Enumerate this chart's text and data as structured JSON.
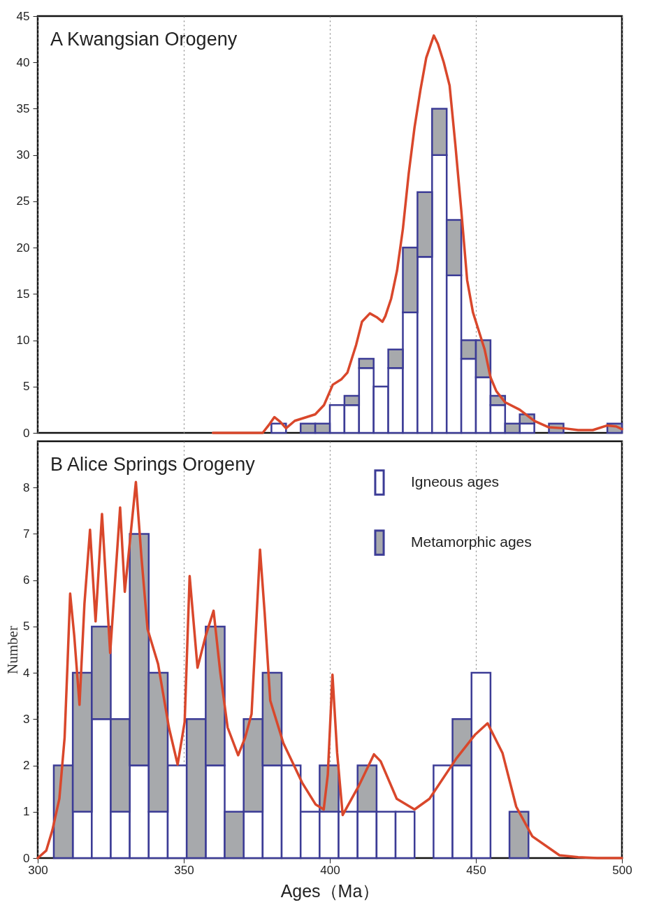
{
  "chart_data": [
    {
      "type": "bar",
      "title": "A Kwangsian Orogeny",
      "stacked": true,
      "grid": "x",
      "tick_labels": "y",
      "legend": false,
      "x": [
        382.5,
        387.5,
        392.5,
        397.5,
        402.5,
        407.5,
        412.5,
        417.5,
        422.5,
        427.5,
        432.5,
        437.5,
        442.5,
        447.5,
        452.5,
        457.5,
        462.5,
        467.5,
        472.5,
        477.5,
        482.5,
        487.5,
        492.5,
        497.5
      ],
      "series": [
        {
          "color": "#ffffff",
          "values": [
            1,
            0,
            0,
            0,
            3,
            3,
            7,
            5,
            7,
            13,
            19,
            30,
            17,
            8,
            6,
            3,
            0,
            1,
            0,
            0,
            0,
            0,
            0,
            0
          ]
        },
        {
          "color": "#a7a9ac",
          "values": [
            0,
            0,
            1,
            1,
            0,
            1,
            1,
            0,
            2,
            7,
            7,
            5,
            6,
            2,
            4,
            1,
            1,
            1,
            0,
            1,
            0,
            0,
            0,
            1
          ]
        },
        {
          "type": "line",
          "color": "#d9472b",
          "x": [
            360,
            377,
            379,
            381,
            383,
            385,
            388,
            392,
            395,
            398,
            401,
            404,
            406,
            409,
            411,
            413.7,
            416,
            418,
            419,
            421,
            423,
            425,
            427,
            429,
            431,
            433,
            435.6,
            437,
            439,
            441,
            443,
            445,
            447,
            449,
            451,
            453,
            455,
            457,
            460,
            465,
            470,
            475,
            480,
            485,
            490,
            495,
            498,
            500
          ],
          "values": [
            0,
            0,
            0.8,
            1.7,
            1.2,
            0.5,
            1.3,
            1.7,
            2.0,
            3.0,
            5.2,
            5.8,
            6.5,
            9.5,
            12.0,
            12.9,
            12.5,
            12.0,
            12.6,
            14.5,
            17.5,
            22,
            28,
            33,
            37,
            40.5,
            42.9,
            42,
            40,
            37.5,
            31,
            24,
            16.5,
            13,
            11,
            9,
            6,
            4.5,
            3.3,
            2.5,
            1.3,
            0.6,
            0.5,
            0.3,
            0.3,
            0.8,
            0.7,
            0.4
          ]
        }
      ],
      "xlim": [
        300,
        500
      ],
      "xticks": [
        300,
        350,
        400,
        450,
        500
      ],
      "ylim": [
        0,
        45
      ],
      "yticks": [
        0,
        5,
        10,
        15,
        20,
        25,
        30,
        35,
        40,
        45
      ]
    },
    {
      "type": "bar",
      "title": "B Alice Springs Orogeny",
      "xlabel": "Ages（Ma）",
      "ylabel": "Number",
      "stacked": true,
      "grid": "x",
      "legend": "top right",
      "x": [
        308.75,
        315.25,
        321.75,
        328.25,
        334.75,
        341.25,
        347.75,
        354.25,
        360.75,
        367.25,
        373.75,
        380.25,
        386.75,
        393.25,
        399.75,
        406.25,
        412.75,
        419.25,
        425.75,
        432.25,
        438.75,
        445.25,
        451.75,
        458.25,
        464.75
      ],
      "series": [
        {
          "name": "Igneous ages",
          "color": "#ffffff",
          "values": [
            0,
            1,
            3,
            1,
            2,
            1,
            2,
            0,
            2,
            0,
            1,
            2,
            2,
            1,
            1,
            1,
            1,
            1,
            1,
            0,
            2,
            2,
            4,
            0,
            0
          ]
        },
        {
          "name": "Metamorphic ages",
          "color": "#a7a9ac",
          "values": [
            2,
            3,
            2,
            2,
            5,
            3,
            0,
            3,
            3,
            1,
            2,
            2,
            0,
            0,
            1,
            0,
            1,
            0,
            0,
            0,
            0,
            1,
            0,
            0,
            1
          ]
        },
        {
          "type": "line",
          "color": "#d9472b",
          "x": [
            300,
            302.9,
            305,
            307.4,
            309.2,
            310.2,
            311.1,
            312.5,
            314.3,
            316,
            317.9,
            319.8,
            322.0,
            324.8,
            326.5,
            328.2,
            329.8,
            331.5,
            333.6,
            335.5,
            337.6,
            341.2,
            344.9,
            347.9,
            350.3,
            352,
            354.7,
            357.5,
            360.2,
            362.5,
            365,
            368.6,
            371,
            373.2,
            376.1,
            377.7,
            379.6,
            384.1,
            390.5,
            395.1,
            397.9,
            399.3,
            400.9,
            402.5,
            404.4,
            410.0,
            415.1,
            417.4,
            422.9,
            429.0,
            434.1,
            443.3,
            449.8,
            454.0,
            459.1,
            463.8,
            469.3,
            478.6,
            485,
            491.6,
            500
          ],
          "values": [
            0,
            0.16,
            0.6,
            1.28,
            2.6,
            4.2,
            5.71,
            4.8,
            3.31,
            5.5,
            7.09,
            5.11,
            7.43,
            4.43,
            6.0,
            7.57,
            5.75,
            6.8,
            8.12,
            6.5,
            4.94,
            4.19,
            2.82,
            2.02,
            2.94,
            6.09,
            4.11,
            4.8,
            5.34,
            4.0,
            2.82,
            2.22,
            2.6,
            3.11,
            6.66,
            5.28,
            3.4,
            2.48,
            1.63,
            1.16,
            1.05,
            1.8,
            3.96,
            2.27,
            0.93,
            1.57,
            2.24,
            2.09,
            1.28,
            1.05,
            1.28,
            2.15,
            2.67,
            2.91,
            2.27,
            1.11,
            0.47,
            0.06,
            0.02,
            0,
            0
          ]
        }
      ],
      "xlim": [
        300,
        500
      ],
      "xticks": [
        300,
        350,
        400,
        450,
        500
      ],
      "ylim": [
        0,
        9
      ],
      "yticks": [
        0,
        1,
        2,
        3,
        4,
        5,
        6,
        7,
        8
      ]
    }
  ]
}
